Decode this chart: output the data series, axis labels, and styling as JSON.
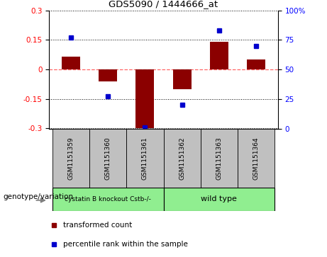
{
  "title": "GDS5090 / 1444666_at",
  "samples": [
    "GSM1151359",
    "GSM1151360",
    "GSM1151361",
    "GSM1151362",
    "GSM1151363",
    "GSM1151364"
  ],
  "red_values": [
    0.063,
    -0.062,
    -0.3,
    -0.1,
    0.14,
    0.05
  ],
  "blue_values": [
    77,
    27,
    1,
    20,
    83,
    70
  ],
  "ylim": [
    -0.3,
    0.3
  ],
  "yticks_left": [
    -0.3,
    -0.15,
    0,
    0.15,
    0.3
  ],
  "yticks_right": [
    0,
    25,
    50,
    75,
    100
  ],
  "group1_label": "cystatin B knockout Cstb-/-",
  "group2_label": "wild type",
  "group_label": "genotype/variation",
  "legend_red": "transformed count",
  "legend_blue": "percentile rank within the sample",
  "bar_color": "#8B0000",
  "dot_color": "#0000CD",
  "zero_line_color": "#FF6666",
  "sample_box_color": "#C0C0C0",
  "group_color": "#90EE90"
}
